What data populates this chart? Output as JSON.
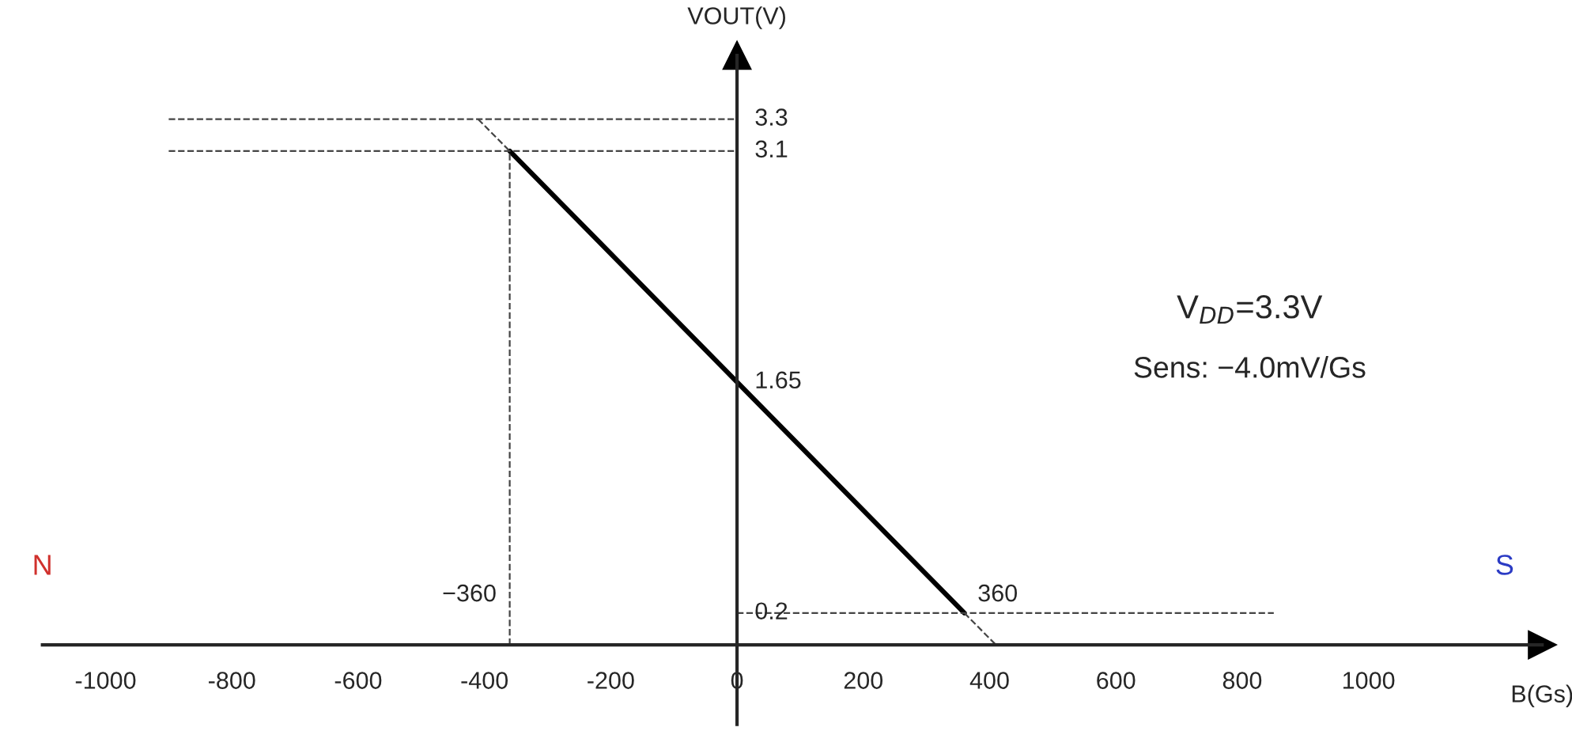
{
  "chart_data": {
    "type": "line",
    "xlabel": "B(Gs)",
    "ylabel": "VOUT(V)",
    "series": [
      {
        "color": "#000000",
        "x": [
          -360,
          360
        ],
        "values": [
          3.1,
          0.2
        ],
        "line_style": "solid"
      },
      {
        "color": "#444444",
        "x": [
          -410,
          -360
        ],
        "values": [
          3.3,
          3.1
        ],
        "line_style": "dashed"
      },
      {
        "color": "#444444",
        "x": [
          360,
          410
        ],
        "values": [
          0.2,
          0.0
        ],
        "line_style": "dashed"
      },
      {
        "color": "#444444",
        "x": [
          -900,
          0
        ],
        "values": [
          3.3,
          3.3
        ],
        "line_style": "dashed"
      },
      {
        "color": "#444444",
        "x": [
          -900,
          0
        ],
        "values": [
          3.1,
          3.1
        ],
        "line_style": "dashed"
      },
      {
        "color": "#444444",
        "x": [
          -360,
          -360
        ],
        "values": [
          0.0,
          3.1
        ],
        "line_style": "dashed"
      },
      {
        "color": "#444444",
        "x": [
          0,
          850
        ],
        "values": [
          0.2,
          0.2
        ],
        "line_style": "dashed"
      }
    ],
    "xlim": [
      -1100,
      1275
    ],
    "ylim": [
      -0.5,
      3.7
    ],
    "xticks": [
      -1000,
      -800,
      -600,
      -400,
      -200,
      0,
      200,
      400,
      600,
      800,
      1000
    ],
    "yticks": [
      0.2,
      1.65,
      3.1,
      3.3
    ],
    "annotations": [
      {
        "text": "−360",
        "x": -360,
        "y": 0.2
      },
      {
        "text": "360",
        "x": 360,
        "y": 0.2
      },
      "N",
      "S",
      "V$_{DD}$=3.3V",
      "Sens: −4.0mV/Gs"
    ]
  }
}
